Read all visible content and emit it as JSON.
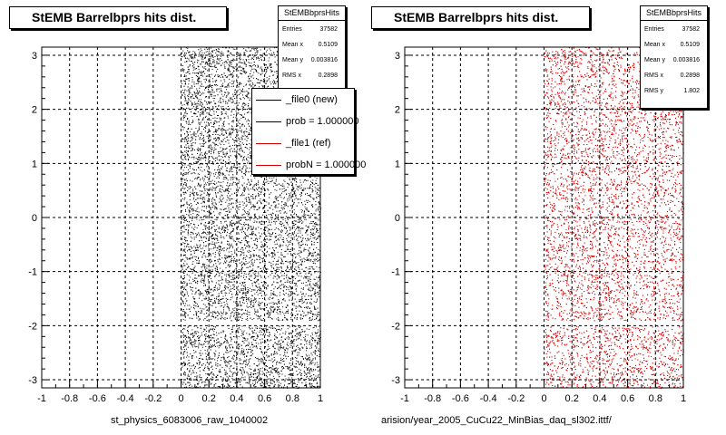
{
  "left_panel": {
    "title": "StEMB Barrelbprs hits dist.",
    "stats": {
      "name": "StEMBbprsHits",
      "rows": [
        {
          "label": "Entries",
          "value": "37582"
        },
        {
          "label": "Mean x",
          "value": "0.5109"
        },
        {
          "label": "Mean y",
          "value": "0.003816"
        },
        {
          "label": "RMS x",
          "value": "0.2898"
        }
      ]
    },
    "legend": [
      {
        "label": "_file0 (new)",
        "color": "#000000"
      },
      {
        "label": "prob = 1.000000",
        "color": "#000000"
      },
      {
        "label": "_file1 (ref)",
        "color": "#d00000"
      },
      {
        "label": "probN = 1.000000",
        "color": "#d00000"
      }
    ],
    "xlabel": "st_physics_6083006_raw_1040002"
  },
  "right_panel": {
    "title": "StEMB Barrelbprs hits dist.",
    "stats": {
      "name": "StEMBbprsHits",
      "rows": [
        {
          "label": "Entries",
          "value": "37582"
        },
        {
          "label": "Mean x",
          "value": "0.5109"
        },
        {
          "label": "Mean y",
          "value": "0.003816"
        },
        {
          "label": "RMS x",
          "value": "0.2898"
        },
        {
          "label": "RMS y",
          "value": "1.802"
        }
      ]
    },
    "xlabel": "arision/year_2005_CuCu22_MinBias_daq_sl302.ittf/"
  },
  "footer_text": "",
  "chart_data": [
    {
      "type": "scatter",
      "title": "StEMB Barrelbprs hits dist.",
      "xlabel": "st_physics_6083006_raw_1040002",
      "ylabel": "",
      "xlim": [
        -1,
        1
      ],
      "ylim": [
        -3.15,
        3.15
      ],
      "xticks": [
        "-1",
        "-0.8",
        "-0.6",
        "-0.4",
        "-0.2",
        "0",
        "0.2",
        "0.4",
        "0.6",
        "0.8",
        "1"
      ],
      "yticks": [
        "-3",
        "-2",
        "-1",
        "0",
        "1",
        "2",
        "3"
      ],
      "grid": true,
      "series": [
        {
          "name": "_file0 (new)",
          "color": "#000000",
          "points_region": {
            "x": [
              0,
              1
            ],
            "y": [
              -3.15,
              3.15
            ],
            "gap_y": [
              -2.0,
              -1.9
            ]
          }
        }
      ],
      "stats": {
        "Entries": 37582,
        "Mean x": 0.5109,
        "Mean y": 0.003816,
        "RMS x": 0.2898
      }
    },
    {
      "type": "scatter",
      "title": "StEMB Barrelbprs hits dist.",
      "xlabel": "arision/year_2005_CuCu22_MinBias_daq_sl302.ittf/",
      "ylabel": "",
      "xlim": [
        -1,
        1
      ],
      "ylim": [
        -3.15,
        3.15
      ],
      "xticks": [
        "-1",
        "-0.8",
        "-0.6",
        "-0.4",
        "-0.2",
        "0",
        "0.2",
        "0.4",
        "0.6",
        "0.8",
        "1"
      ],
      "yticks": [
        "-3",
        "-2",
        "-1",
        "0",
        "1",
        "2",
        "3"
      ],
      "grid": true,
      "series": [
        {
          "name": "_file1 (ref)",
          "color": "#d00000",
          "points_region": {
            "x": [
              0,
              1
            ],
            "y": [
              -3.15,
              3.15
            ],
            "gap_y": [
              -2.0,
              -1.9
            ]
          }
        }
      ],
      "stats": {
        "Entries": 37582,
        "Mean x": 0.5109,
        "Mean y": 0.003816,
        "RMS x": 0.2898,
        "RMS y": 1.802
      }
    }
  ]
}
